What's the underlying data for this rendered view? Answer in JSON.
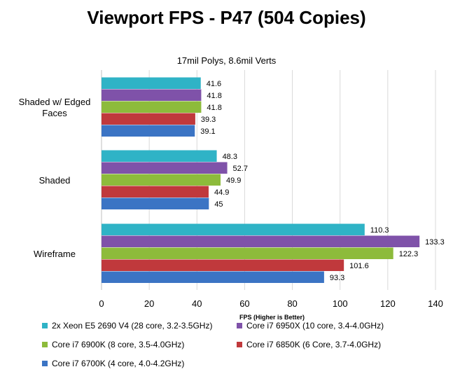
{
  "chart_data": {
    "type": "bar",
    "orientation": "horizontal",
    "title": "Viewport FPS - P47 (504 Copies)",
    "subtitle": "17mil Polys, 8.6mil Verts",
    "xlabel": "FPS (Higher is Better)",
    "ylabel": "",
    "xlim": [
      0,
      140
    ],
    "xticks": [
      0,
      20,
      40,
      60,
      80,
      100,
      120,
      140
    ],
    "grid": true,
    "legend_position": "bottom",
    "categories": [
      "Shaded w/ Edged Faces",
      "Shaded",
      "Wireframe"
    ],
    "series": [
      {
        "name": "2x Xeon E5 2690 V4 (28 core, 3.2-3.5GHz)",
        "color": "#2fb3c6",
        "values": [
          41.6,
          48.3,
          110.3
        ]
      },
      {
        "name": "Core i7 6950X (10 core, 3.4-4.0GHz)",
        "color": "#7f52a9",
        "values": [
          41.8,
          52.7,
          133.3
        ]
      },
      {
        "name": "Core i7 6900K (8 core, 3.5-4.0GHz)",
        "color": "#8dbb3b",
        "values": [
          41.8,
          49.9,
          122.3
        ]
      },
      {
        "name": "Core i7 6850K (6 Core, 3.7-4.0GHz)",
        "color": "#c0393c",
        "values": [
          39.3,
          44.9,
          101.6
        ]
      },
      {
        "name": "Core i7 6700K (4 core, 4.0-4.2GHz)",
        "color": "#3b74c4",
        "values": [
          39.1,
          45,
          93.3
        ]
      }
    ]
  }
}
